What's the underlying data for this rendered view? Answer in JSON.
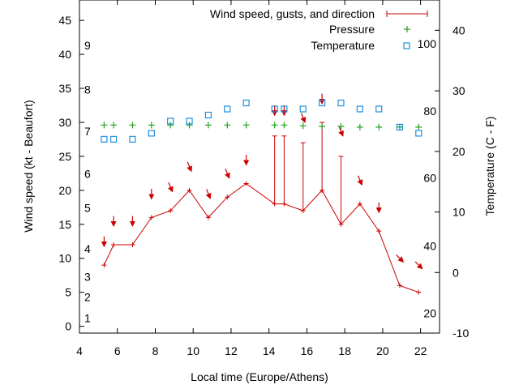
{
  "chart_data": {
    "type": "line",
    "xlabel": "Local time (Europe/Athens)",
    "ylabel": "Wind speed (kt - Beaufort)",
    "y2label": "Temperature (C - F)",
    "xlim": [
      4,
      23
    ],
    "ylim": [
      -1,
      48
    ],
    "y2lim": [
      -10,
      45
    ],
    "x_ticks": [
      4,
      6,
      8,
      10,
      12,
      14,
      16,
      18,
      20,
      22
    ],
    "y_ticks": [
      0,
      5,
      10,
      15,
      20,
      25,
      30,
      35,
      40,
      45
    ],
    "y2_ticks": [
      -10,
      0,
      10,
      20,
      30,
      40
    ],
    "beaufort_labels": [
      {
        "label": "1",
        "value": 1.2
      },
      {
        "label": "2",
        "value": 4.3
      },
      {
        "label": "3",
        "value": 7.3
      },
      {
        "label": "4",
        "value": 11.4
      },
      {
        "label": "5",
        "value": 17.4
      },
      {
        "label": "6",
        "value": 22.4
      },
      {
        "label": "7",
        "value": 28.7
      },
      {
        "label": "8",
        "value": 34.8
      },
      {
        "label": "9",
        "value": 41.3
      }
    ],
    "fahrenheit_labels": [
      {
        "label": "20",
        "value": -6.7
      },
      {
        "label": "40",
        "value": 4.4
      },
      {
        "label": "60",
        "value": 15.6
      },
      {
        "label": "80",
        "value": 26.7
      },
      {
        "label": "100",
        "value": 37.8
      }
    ],
    "legend": {
      "position": "top-right",
      "entries": [
        "Wind speed, gusts, and direction",
        "Pressure",
        "Temperature"
      ]
    },
    "colors": {
      "wind": "#cc0000",
      "pressure": "#22a022",
      "temperature": "#1f8fdc"
    },
    "series": [
      {
        "name": "Wind speed, gusts, and direction",
        "x": [
          5.3,
          5.8,
          6.8,
          7.8,
          8.8,
          9.8,
          10.8,
          11.8,
          12.8,
          14.3,
          14.8,
          15.8,
          16.8,
          17.8,
          18.8,
          19.8,
          20.9,
          21.9
        ],
        "values": [
          9,
          12,
          12,
          16,
          17,
          20,
          16,
          19,
          21,
          18,
          18,
          17,
          20,
          15,
          18,
          14,
          6,
          5
        ],
        "gusts": [
          null,
          null,
          null,
          null,
          null,
          null,
          null,
          null,
          null,
          28,
          28,
          27,
          30,
          25,
          null,
          null,
          null,
          null
        ],
        "arrows": [
          {
            "y": 12.5,
            "dir": "S"
          },
          {
            "y": 15.5,
            "dir": "S"
          },
          {
            "y": 15.5,
            "dir": "S"
          },
          {
            "y": 19.5,
            "dir": "S"
          },
          {
            "y": 20.5,
            "dir": "SSW"
          },
          {
            "y": 23.5,
            "dir": "SSW"
          },
          {
            "y": 19.5,
            "dir": "SSW"
          },
          {
            "y": 22.5,
            "dir": "SSW"
          },
          {
            "y": 24.5,
            "dir": "S"
          },
          {
            "y": 31.8,
            "dir": "S"
          },
          {
            "y": 31.8,
            "dir": "S"
          },
          {
            "y": 30.7,
            "dir": "SSW"
          },
          {
            "y": 33.5,
            "dir": "S"
          },
          {
            "y": 28.7,
            "dir": "SSW"
          },
          {
            "y": 21.5,
            "dir": "SSW"
          },
          {
            "y": 17.5,
            "dir": "S"
          },
          {
            "y": 10.0,
            "dir": "SE"
          },
          {
            "y": 9.0,
            "dir": "SE"
          }
        ]
      },
      {
        "name": "Pressure",
        "x": [
          5.3,
          5.8,
          6.8,
          7.8,
          8.8,
          9.8,
          10.8,
          11.8,
          12.8,
          14.3,
          14.8,
          15.8,
          16.8,
          17.8,
          18.8,
          19.8,
          20.9,
          21.9
        ],
        "values": [
          29.6,
          29.6,
          29.6,
          29.6,
          29.6,
          29.6,
          29.6,
          29.6,
          29.6,
          29.6,
          29.6,
          29.5,
          29.4,
          29.4,
          29.3,
          29.3,
          29.3,
          29.3
        ]
      },
      {
        "name": "Temperature",
        "axis": "right",
        "x": [
          5.3,
          5.8,
          6.8,
          7.8,
          8.8,
          9.8,
          10.8,
          11.8,
          12.8,
          14.3,
          14.8,
          15.8,
          16.8,
          17.8,
          18.8,
          19.8,
          20.9,
          21.9
        ],
        "values": [
          22,
          22,
          22,
          23,
          25,
          25,
          26,
          27,
          28,
          27,
          27,
          27,
          28,
          28,
          27,
          27,
          24,
          23
        ]
      }
    ]
  }
}
